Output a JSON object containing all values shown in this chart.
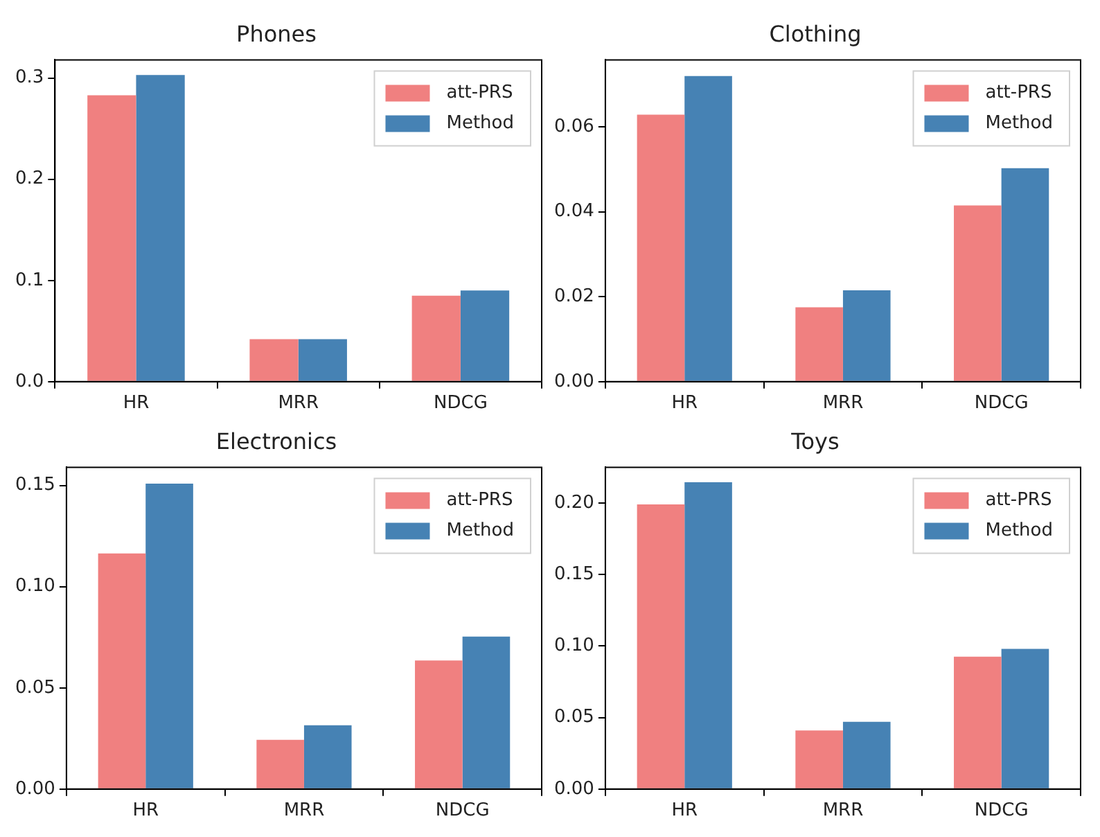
{
  "chart_data": [
    {
      "type": "bar",
      "title": "Phones",
      "categories": [
        "HR",
        "MRR",
        "NDCG"
      ],
      "legend": "top right",
      "grid": false,
      "ylim": [
        0,
        0.318
      ],
      "yticks": [
        {
          "value": 0,
          "label": "0.0"
        },
        0.1,
        0.2,
        0.3
      ],
      "series": [
        {
          "name": "att-PRS",
          "color": "#f08080",
          "values": [
            0.283,
            0.042,
            0.085
          ]
        },
        {
          "name": "Method",
          "color": "#4682b4",
          "values": [
            0.303,
            0.042,
            0.09
          ]
        }
      ]
    },
    {
      "type": "bar",
      "title": "Clothing",
      "categories": [
        "HR",
        "MRR",
        "NDCG"
      ],
      "legend": "top right",
      "grid": false,
      "ylim": [
        0,
        0.0758
      ],
      "yticks": [
        {
          "value": 0,
          "label": "0.00"
        },
        0.02,
        0.04,
        0.06
      ],
      "series": [
        {
          "name": "att-PRS",
          "color": "#f08080",
          "values": [
            0.0629,
            0.0175,
            0.0415
          ]
        },
        {
          "name": "Method",
          "color": "#4682b4",
          "values": [
            0.072,
            0.0215,
            0.0503
          ]
        }
      ]
    },
    {
      "type": "bar",
      "title": "Electronics",
      "categories": [
        "HR",
        "MRR",
        "NDCG"
      ],
      "legend": "top right",
      "grid": false,
      "ylim": [
        0,
        0.159
      ],
      "yticks": [
        {
          "value": 0,
          "label": "0.00"
        },
        0.05,
        {
          "value": 0.1,
          "label": "0.10"
        },
        0.15
      ],
      "series": [
        {
          "name": "att-PRS",
          "color": "#f08080",
          "values": [
            0.1164,
            0.0243,
            0.0635
          ]
        },
        {
          "name": "Method",
          "color": "#4682b4",
          "values": [
            0.1509,
            0.0315,
            0.0753
          ]
        }
      ]
    },
    {
      "type": "bar",
      "title": "Toys",
      "categories": [
        "HR",
        "MRR",
        "NDCG"
      ],
      "legend": "top right",
      "grid": false,
      "ylim": [
        0,
        0.225
      ],
      "yticks": [
        {
          "value": 0,
          "label": "0.00"
        },
        0.05,
        {
          "value": 0.1,
          "label": "0.10"
        },
        0.15,
        {
          "value": 0.2,
          "label": "0.20"
        }
      ],
      "series": [
        {
          "name": "att-PRS",
          "color": "#f08080",
          "values": [
            0.199,
            0.041,
            0.0926
          ]
        },
        {
          "name": "Method",
          "color": "#4682b4",
          "values": [
            0.2145,
            0.047,
            0.098
          ]
        }
      ]
    }
  ]
}
